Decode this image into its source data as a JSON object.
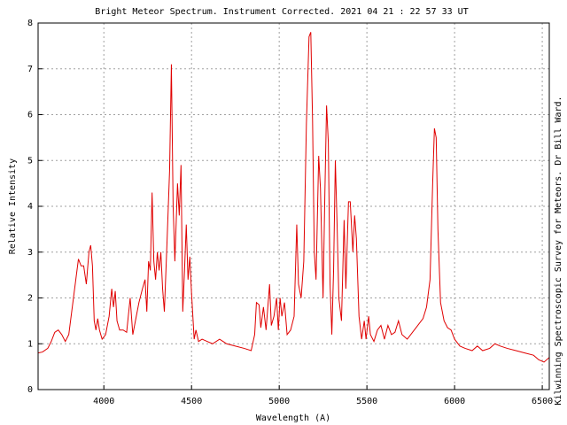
{
  "chart_data": {
    "type": "line",
    "title": "Bright Meteor Spectrum. Instrument Corrected. 2021 04 21 : 22 57 33 UT",
    "xlabel": "Wavelength (A)",
    "ylabel": "Relative Intensity",
    "side_note": "Kilwinning Spectroscopic Survey for Meteors. Dr Bill Ward.",
    "x": [
      3625,
      3650,
      3680,
      3700,
      3720,
      3740,
      3760,
      3780,
      3800,
      3820,
      3840,
      3855,
      3870,
      3885,
      3900,
      3915,
      3925,
      3935,
      3945,
      3955,
      3965,
      3975,
      3990,
      4010,
      4030,
      4045,
      4055,
      4065,
      4075,
      4090,
      4110,
      4130,
      4150,
      4165,
      4180,
      4200,
      4220,
      4235,
      4245,
      4255,
      4265,
      4275,
      4285,
      4295,
      4305,
      4315,
      4325,
      4335,
      4345,
      4360,
      4375,
      4385,
      4395,
      4405,
      4420,
      4430,
      4440,
      4450,
      4460,
      4470,
      4480,
      4490,
      4500,
      4515,
      4525,
      4540,
      4560,
      4590,
      4620,
      4660,
      4700,
      4750,
      4800,
      4840,
      4860,
      4870,
      4885,
      4895,
      4910,
      4925,
      4945,
      4955,
      4970,
      4985,
      4995,
      5005,
      5015,
      5030,
      5045,
      5065,
      5085,
      5100,
      5110,
      5125,
      5140,
      5155,
      5170,
      5180,
      5190,
      5200,
      5210,
      5225,
      5235,
      5250,
      5260,
      5270,
      5280,
      5290,
      5300,
      5310,
      5320,
      5330,
      5340,
      5355,
      5370,
      5380,
      5395,
      5405,
      5420,
      5430,
      5440,
      5455,
      5470,
      5485,
      5495,
      5510,
      5520,
      5540,
      5560,
      5580,
      5600,
      5620,
      5640,
      5660,
      5680,
      5700,
      5730,
      5760,
      5790,
      5820,
      5840,
      5860,
      5875,
      5885,
      5895,
      5905,
      5920,
      5940,
      5960,
      5980,
      6000,
      6030,
      6060,
      6100,
      6130,
      6160,
      6200,
      6230,
      6260,
      6300,
      6350,
      6400,
      6450,
      6480,
      6510,
      6540
    ],
    "series": [
      {
        "color": "#e00000",
        "values": [
          0.8,
          0.82,
          0.9,
          1.05,
          1.25,
          1.3,
          1.2,
          1.05,
          1.2,
          1.8,
          2.4,
          2.85,
          2.7,
          2.7,
          2.3,
          3.0,
          3.15,
          2.7,
          1.5,
          1.3,
          1.55,
          1.3,
          1.1,
          1.2,
          1.6,
          2.2,
          1.8,
          2.15,
          1.5,
          1.3,
          1.3,
          1.25,
          2.0,
          1.2,
          1.5,
          1.9,
          2.2,
          2.4,
          1.7,
          2.8,
          2.6,
          4.3,
          2.8,
          2.4,
          3.0,
          2.6,
          3.0,
          2.2,
          1.7,
          3.2,
          4.8,
          7.1,
          4.0,
          2.8,
          4.5,
          3.8,
          4.9,
          1.7,
          2.6,
          3.6,
          2.4,
          2.9,
          2.1,
          1.1,
          1.3,
          1.05,
          1.1,
          1.05,
          1.0,
          1.1,
          1.0,
          0.95,
          0.9,
          0.85,
          1.2,
          1.9,
          1.85,
          1.35,
          1.8,
          1.3,
          2.3,
          1.4,
          1.6,
          2.0,
          1.3,
          2.0,
          1.6,
          1.9,
          1.2,
          1.3,
          1.6,
          3.6,
          2.3,
          2.0,
          2.8,
          5.8,
          7.7,
          7.8,
          5.9,
          3.0,
          2.4,
          5.1,
          4.4,
          2.0,
          4.2,
          6.2,
          5.4,
          2.3,
          1.2,
          2.6,
          5.0,
          3.6,
          2.0,
          1.5,
          3.7,
          2.2,
          4.1,
          4.1,
          3.0,
          3.8,
          3.3,
          1.6,
          1.1,
          1.5,
          1.1,
          1.6,
          1.2,
          1.05,
          1.3,
          1.4,
          1.1,
          1.4,
          1.2,
          1.25,
          1.5,
          1.2,
          1.1,
          1.25,
          1.4,
          1.55,
          1.8,
          2.4,
          4.5,
          5.7,
          5.5,
          3.5,
          1.9,
          1.5,
          1.35,
          1.3,
          1.1,
          0.95,
          0.9,
          0.85,
          0.95,
          0.85,
          0.9,
          1.0,
          0.95,
          0.9,
          0.85,
          0.8,
          0.75,
          0.65,
          0.6,
          0.7
        ]
      }
    ],
    "xlim": [
      3625,
      6540
    ],
    "ylim": [
      0,
      8
    ],
    "xticks": [
      4000,
      4500,
      5000,
      5500,
      6000,
      6500
    ],
    "yticks": [
      0,
      1,
      2,
      3,
      4,
      5,
      6,
      7,
      8
    ],
    "grid": true
  }
}
